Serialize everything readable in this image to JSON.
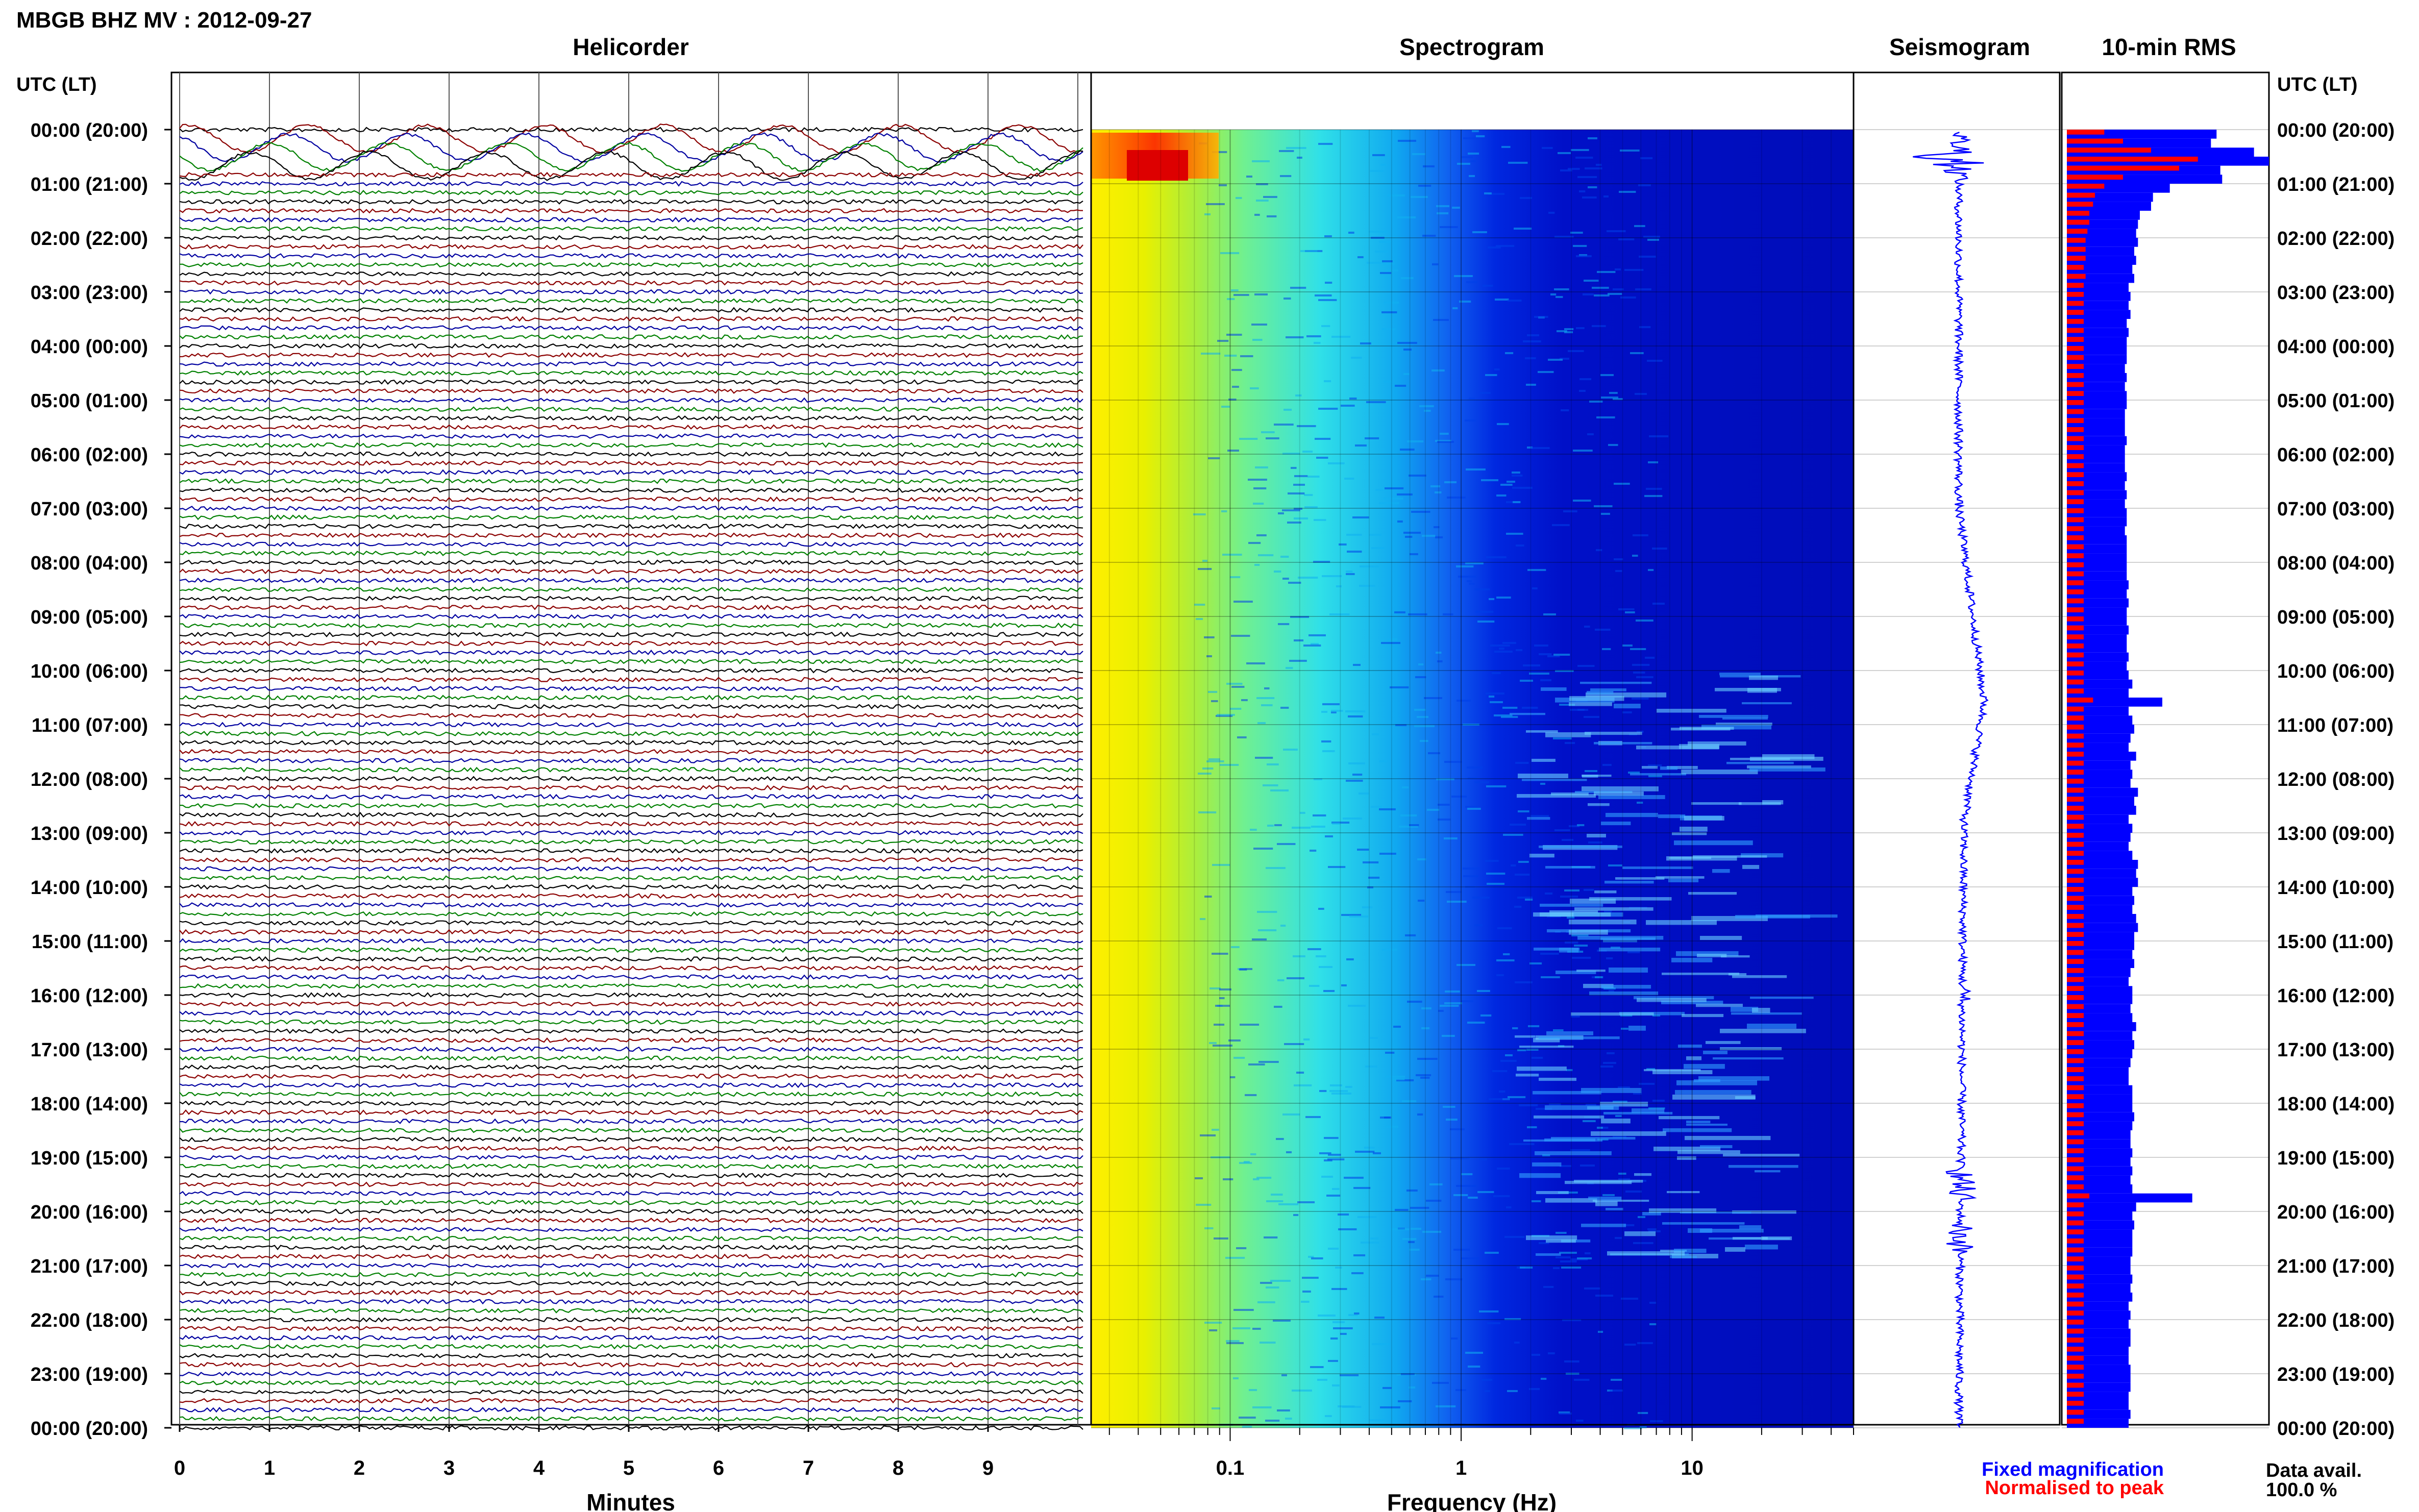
{
  "header": {
    "station_title": "MBGB BHZ MV : 2012-09-27",
    "utc_label_left": "UTC (LT)",
    "utc_label_right": "UTC (LT)"
  },
  "panels": {
    "helicorder": "Helicorder",
    "spectrogram": "Spectrogram",
    "seismogram": "Seismogram",
    "rms": "10-min RMS"
  },
  "legend": {
    "fixed": "Fixed magnification",
    "normalised": "Normalised to peak",
    "fixed_color": "#0000ff",
    "normalised_color": "#ff0000"
  },
  "data_avail": {
    "label": "Data avail.",
    "value": "100.0 %"
  },
  "chart_data": [
    {
      "type": "line",
      "name": "helicorder",
      "title": "Helicorder",
      "xlabel": "Minutes",
      "x_ticks": [
        "0",
        "1",
        "2",
        "3",
        "4",
        "5",
        "6",
        "7",
        "8",
        "9"
      ],
      "xlim": [
        0,
        10
      ],
      "trace_colors": [
        "#000000",
        "#8b0000",
        "#0000a0",
        "#008000"
      ],
      "traces_per_hour": 6,
      "time_labels": [
        "00:00 (20:00)",
        "01:00 (21:00)",
        "02:00 (22:00)",
        "03:00 (23:00)",
        "04:00 (00:00)",
        "05:00 (01:00)",
        "06:00 (02:00)",
        "07:00 (03:00)",
        "08:00 (04:00)",
        "09:00 (05:00)",
        "10:00 (06:00)",
        "11:00 (07:00)",
        "12:00 (08:00)",
        "13:00 (09:00)",
        "14:00 (10:00)",
        "15:00 (11:00)",
        "16:00 (12:00)",
        "17:00 (13:00)",
        "18:00 (14:00)",
        "19:00 (15:00)",
        "20:00 (16:00)",
        "21:00 (17:00)",
        "22:00 (18:00)",
        "23:00 (19:00)",
        "00:00 (20:00)"
      ]
    },
    {
      "type": "heatmap",
      "name": "spectrogram",
      "title": "Spectrogram",
      "xlabel": "Frequency (Hz)",
      "x_scale": "log",
      "xlim": [
        0.025,
        50
      ],
      "x_ticks": [
        "0.1",
        "1",
        "10"
      ],
      "colormap": [
        "#00008b",
        "#0000ff",
        "#1e90ff",
        "#00ffff",
        "#7fff7f",
        "#ffff00",
        "#ff8c00",
        "#ff0000"
      ]
    },
    {
      "type": "line",
      "name": "seismogram",
      "title": "Seismogram",
      "color": "#0000ff"
    },
    {
      "type": "bar",
      "name": "rms",
      "title": "10-min RMS",
      "orientation": "horizontal",
      "bins_per_hour": 6,
      "series": [
        {
          "name": "Fixed magnification",
          "color": "#0000ff",
          "values": [
            80,
            77,
            100,
            108,
            82,
            83,
            55,
            46,
            45,
            39,
            38,
            37,
            38,
            36,
            37,
            35,
            36,
            33,
            34,
            33,
            34,
            32,
            33,
            32,
            32,
            32,
            31,
            32,
            31,
            32,
            32,
            31,
            31,
            31,
            32,
            31,
            31,
            31,
            32,
            31,
            32,
            31,
            32,
            32,
            31,
            32,
            32,
            32,
            32,
            32,
            33,
            32,
            33,
            32,
            32,
            33,
            32,
            32,
            33,
            32,
            33,
            35,
            33,
            51,
            33,
            35,
            36,
            34,
            33,
            37,
            34,
            35,
            34,
            38,
            36,
            37,
            33,
            35,
            34,
            33,
            35,
            38,
            37,
            38,
            35,
            36,
            35,
            37,
            38,
            36,
            36,
            35,
            36,
            34,
            33,
            35,
            35,
            34,
            35,
            37,
            35,
            36,
            35,
            34,
            33,
            33,
            35,
            35,
            35,
            36,
            35,
            34,
            34,
            35,
            34,
            35,
            34,
            35,
            67,
            37,
            35,
            36,
            35,
            35,
            35,
            34,
            34,
            35,
            34,
            35,
            33,
            34,
            33,
            34,
            34,
            33,
            33,
            34,
            34,
            34,
            33,
            33,
            34,
            33
          ]
        },
        {
          "name": "Normalised to peak",
          "color": "#ff0000",
          "values": [
            20,
            30,
            45,
            70,
            60,
            30,
            20,
            15,
            14,
            12,
            12,
            11,
            10,
            10,
            10,
            9,
            10,
            9,
            9,
            9,
            9,
            9,
            9,
            9,
            9,
            9,
            9,
            9,
            9,
            9,
            9,
            9,
            9,
            9,
            9,
            9,
            9,
            9,
            9,
            9,
            9,
            9,
            9,
            9,
            9,
            9,
            9,
            9,
            9,
            9,
            9,
            9,
            9,
            9,
            9,
            9,
            9,
            9,
            9,
            9,
            9,
            9,
            9,
            14,
            9,
            9,
            9,
            9,
            9,
            9,
            9,
            9,
            9,
            9,
            9,
            9,
            9,
            9,
            9,
            9,
            9,
            9,
            9,
            9,
            9,
            9,
            9,
            9,
            9,
            9,
            9,
            9,
            9,
            9,
            9,
            9,
            9,
            9,
            9,
            9,
            9,
            9,
            9,
            9,
            9,
            9,
            9,
            9,
            9,
            9,
            9,
            9,
            9,
            9,
            9,
            9,
            9,
            9,
            12,
            9,
            9,
            9,
            9,
            9,
            9,
            9,
            9,
            9,
            9,
            9,
            9,
            9,
            9,
            9,
            9,
            9,
            9,
            9,
            9,
            9,
            9,
            9,
            9,
            9
          ]
        }
      ]
    }
  ]
}
